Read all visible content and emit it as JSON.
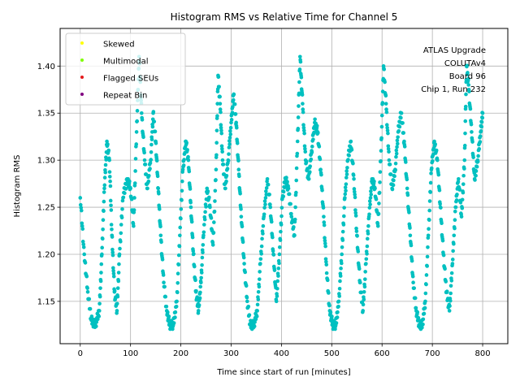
{
  "chart_data": {
    "type": "scatter",
    "title": "Histogram RMS vs Relative Time for Channel 5",
    "xlabel": "Time since start of run [minutes]",
    "ylabel": "Histogram RMS",
    "xlim": [
      -40,
      850
    ],
    "ylim": [
      1.105,
      1.44
    ],
    "xticks": [
      0,
      100,
      200,
      300,
      400,
      500,
      600,
      700,
      800
    ],
    "yticks": [
      1.15,
      1.2,
      1.25,
      1.3,
      1.35,
      1.4
    ],
    "xtick_labels": [
      "0",
      "100",
      "200",
      "300",
      "400",
      "500",
      "600",
      "700",
      "800"
    ],
    "ytick_labels": [
      "1.15",
      "1.20",
      "1.25",
      "1.30",
      "1.35",
      "1.40"
    ],
    "grid": true,
    "legend_position": "top-left",
    "legend": [
      {
        "label": "Skewed",
        "color": "#ffff00"
      },
      {
        "label": "Multimodal",
        "color": "#7fff00"
      },
      {
        "label": "Flagged SEUs",
        "color": "#e41a1c"
      },
      {
        "label": "Repeat Bin",
        "color": "#800080"
      }
    ],
    "annotation": [
      "ATLAS Upgrade",
      "COLUTAv4",
      "Board 96",
      "Chip 1, Run 232"
    ],
    "series": [
      {
        "color": "#00c0c0",
        "points": [
          [
            0,
            1.26
          ],
          [
            8,
            1.2
          ],
          [
            15,
            1.16
          ],
          [
            22,
            1.13
          ],
          [
            30,
            1.125
          ],
          [
            38,
            1.14
          ],
          [
            43,
            1.2
          ],
          [
            48,
            1.27
          ],
          [
            53,
            1.32
          ],
          [
            58,
            1.3
          ],
          [
            63,
            1.22
          ],
          [
            68,
            1.16
          ],
          [
            73,
            1.14
          ],
          [
            78,
            1.2
          ],
          [
            85,
            1.26
          ],
          [
            93,
            1.28
          ],
          [
            100,
            1.27
          ],
          [
            106,
            1.23
          ],
          [
            112,
            1.33
          ],
          [
            117,
            1.41
          ],
          [
            122,
            1.35
          ],
          [
            128,
            1.3
          ],
          [
            133,
            1.27
          ],
          [
            140,
            1.3
          ],
          [
            145,
            1.35
          ],
          [
            150,
            1.32
          ],
          [
            155,
            1.27
          ],
          [
            160,
            1.22
          ],
          [
            166,
            1.17
          ],
          [
            172,
            1.14
          ],
          [
            178,
            1.125
          ],
          [
            185,
            1.125
          ],
          [
            192,
            1.15
          ],
          [
            198,
            1.22
          ],
          [
            204,
            1.29
          ],
          [
            210,
            1.32
          ],
          [
            215,
            1.3
          ],
          [
            220,
            1.25
          ],
          [
            225,
            1.2
          ],
          [
            230,
            1.16
          ],
          [
            235,
            1.14
          ],
          [
            240,
            1.17
          ],
          [
            245,
            1.22
          ],
          [
            252,
            1.27
          ],
          [
            258,
            1.25
          ],
          [
            264,
            1.21
          ],
          [
            270,
            1.29
          ],
          [
            274,
            1.39
          ],
          [
            278,
            1.36
          ],
          [
            283,
            1.3
          ],
          [
            288,
            1.27
          ],
          [
            294,
            1.3
          ],
          [
            300,
            1.34
          ],
          [
            305,
            1.37
          ],
          [
            310,
            1.34
          ],
          [
            315,
            1.29
          ],
          [
            320,
            1.24
          ],
          [
            326,
            1.19
          ],
          [
            332,
            1.15
          ],
          [
            338,
            1.125
          ],
          [
            345,
            1.125
          ],
          [
            352,
            1.14
          ],
          [
            358,
            1.19
          ],
          [
            365,
            1.24
          ],
          [
            372,
            1.28
          ],
          [
            378,
            1.25
          ],
          [
            384,
            1.2
          ],
          [
            390,
            1.15
          ],
          [
            396,
            1.2
          ],
          [
            402,
            1.26
          ],
          [
            408,
            1.28
          ],
          [
            414,
            1.27
          ],
          [
            420,
            1.24
          ],
          [
            426,
            1.22
          ],
          [
            432,
            1.32
          ],
          [
            437,
            1.41
          ],
          [
            442,
            1.36
          ],
          [
            448,
            1.3
          ],
          [
            454,
            1.28
          ],
          [
            460,
            1.31
          ],
          [
            466,
            1.34
          ],
          [
            472,
            1.33
          ],
          [
            478,
            1.29
          ],
          [
            484,
            1.24
          ],
          [
            490,
            1.18
          ],
          [
            496,
            1.14
          ],
          [
            502,
            1.125
          ],
          [
            508,
            1.125
          ],
          [
            514,
            1.15
          ],
          [
            520,
            1.2
          ],
          [
            526,
            1.26
          ],
          [
            532,
            1.3
          ],
          [
            538,
            1.32
          ],
          [
            544,
            1.28
          ],
          [
            550,
            1.22
          ],
          [
            556,
            1.17
          ],
          [
            562,
            1.14
          ],
          [
            568,
            1.19
          ],
          [
            574,
            1.24
          ],
          [
            580,
            1.28
          ],
          [
            586,
            1.27
          ],
          [
            592,
            1.23
          ],
          [
            598,
            1.31
          ],
          [
            603,
            1.4
          ],
          [
            608,
            1.36
          ],
          [
            614,
            1.3
          ],
          [
            620,
            1.27
          ],
          [
            626,
            1.29
          ],
          [
            632,
            1.33
          ],
          [
            638,
            1.35
          ],
          [
            644,
            1.32
          ],
          [
            650,
            1.27
          ],
          [
            656,
            1.22
          ],
          [
            662,
            1.17
          ],
          [
            668,
            1.14
          ],
          [
            674,
            1.125
          ],
          [
            680,
            1.125
          ],
          [
            686,
            1.15
          ],
          [
            692,
            1.22
          ],
          [
            698,
            1.29
          ],
          [
            704,
            1.32
          ],
          [
            710,
            1.3
          ],
          [
            716,
            1.25
          ],
          [
            722,
            1.2
          ],
          [
            728,
            1.16
          ],
          [
            734,
            1.14
          ],
          [
            740,
            1.19
          ],
          [
            746,
            1.25
          ],
          [
            752,
            1.28
          ],
          [
            758,
            1.24
          ],
          [
            764,
            1.3
          ],
          [
            768,
            1.4
          ],
          [
            772,
            1.38
          ],
          [
            778,
            1.33
          ],
          [
            784,
            1.28
          ],
          [
            790,
            1.3
          ],
          [
            796,
            1.33
          ],
          [
            800,
            1.35
          ]
        ]
      }
    ]
  }
}
